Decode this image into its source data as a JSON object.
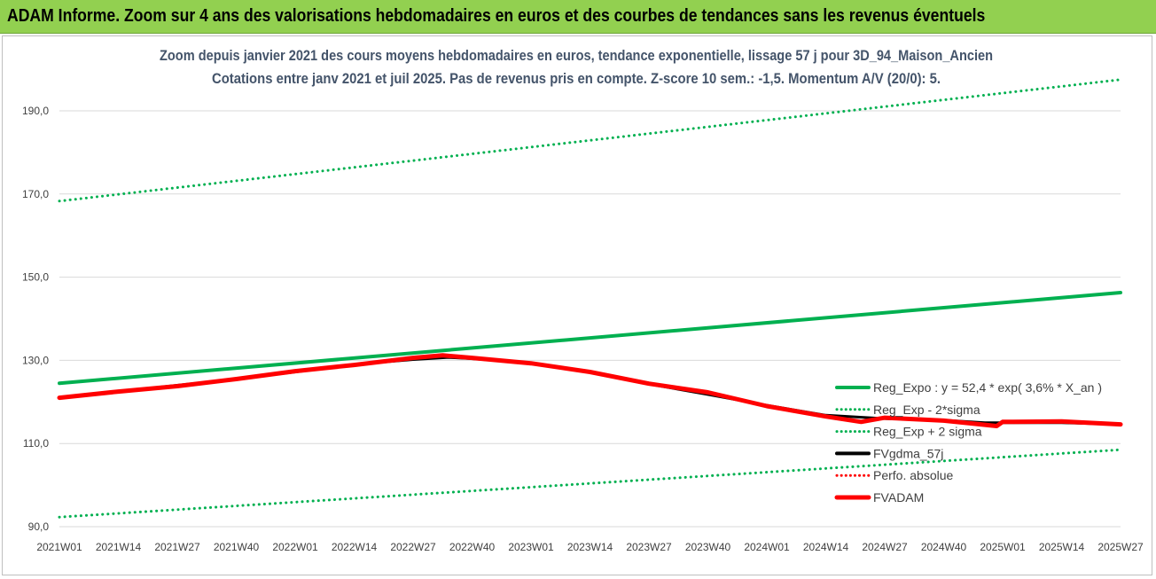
{
  "banner": {
    "text": "ADAM Informe. Zoom sur 4 ans des valorisations hebdomadaires en euros et des courbes de tendances sans les revenus éventuels",
    "color": "#92d050"
  },
  "chart_data": {
    "type": "line",
    "title": "Zoom depuis janvier 2021 des cours moyens hebdomadaires en euros, tendance exponentielle, lissage 57 j pour 3D_94_Maison_Ancien",
    "subtitle": "Cotations entre janv 2021 et juil 2025. Pas de revenus pris en compte. Z-score 10 sem.: -1,5. Momentum A/V (20/0): 5.",
    "x_tick_labels": [
      "2021W01",
      "2021W14",
      "2021W27",
      "2021W40",
      "2022W01",
      "2022W14",
      "2022W27",
      "2022W40",
      "2023W01",
      "2023W14",
      "2023W27",
      "2023W40",
      "2024W01",
      "2024W14",
      "2024W27",
      "2024W40",
      "2025W01",
      "2025W14",
      "2025W27"
    ],
    "y_tick_labels": [
      "90,0",
      "110,0",
      "130,0",
      "150,0",
      "170,0",
      "190,0"
    ],
    "ylim": [
      90,
      200
    ],
    "grid": "horizontal",
    "legend_position": "right",
    "series": [
      {
        "name": "Reg_Expo : y = 52,4 * exp( 3,6% *  X_an )",
        "style": "solid",
        "color": "#00b050",
        "points": [
          [
            0,
            124.5
          ],
          [
            18,
            146.3
          ]
        ]
      },
      {
        "name": "Reg_Exp - 2*sigma",
        "style": "dotted",
        "color": "#00b050",
        "points": [
          [
            0,
            92.3
          ],
          [
            18,
            108.5
          ]
        ]
      },
      {
        "name": "Reg_Exp + 2 sigma",
        "style": "dotted",
        "color": "#00b050",
        "points": [
          [
            0,
            168.3
          ],
          [
            18,
            197.5
          ]
        ]
      },
      {
        "name": "FVgdma_57j",
        "style": "solid",
        "color": "#000000",
        "points": [
          [
            0,
            121.0
          ],
          [
            1,
            122.5
          ],
          [
            2,
            124.0
          ],
          [
            3,
            125.5
          ],
          [
            4,
            127.2
          ],
          [
            5,
            129.0
          ],
          [
            6,
            130.2
          ],
          [
            6.6,
            130.7
          ],
          [
            7,
            130.4
          ],
          [
            8,
            129.3
          ],
          [
            9,
            127.3
          ],
          [
            10,
            124.3
          ],
          [
            11,
            121.8
          ],
          [
            12,
            119.2
          ],
          [
            13,
            116.8
          ],
          [
            14,
            116.0
          ],
          [
            15,
            115.6
          ],
          [
            15.7,
            115.0
          ],
          [
            16,
            115.0
          ],
          [
            17,
            115.0
          ],
          [
            18,
            114.6
          ]
        ]
      },
      {
        "name": "Perfo. absolue",
        "style": "dotted",
        "color": "#ff0000",
        "points": []
      },
      {
        "name": "FVADAM",
        "style": "solid",
        "color": "#ff0000",
        "points": [
          [
            0,
            121.0
          ],
          [
            1,
            122.5
          ],
          [
            2,
            123.8
          ],
          [
            3,
            125.5
          ],
          [
            4,
            127.4
          ],
          [
            5,
            128.9
          ],
          [
            6,
            130.6
          ],
          [
            6.5,
            131.2
          ],
          [
            7,
            130.6
          ],
          [
            8,
            129.3
          ],
          [
            9,
            127.2
          ],
          [
            10,
            124.4
          ],
          [
            11,
            122.3
          ],
          [
            12,
            119.0
          ],
          [
            13,
            116.5
          ],
          [
            13.6,
            115.2
          ],
          [
            14,
            116.2
          ],
          [
            15,
            115.5
          ],
          [
            15.5,
            114.8
          ],
          [
            15.9,
            114.2
          ],
          [
            16,
            115.2
          ],
          [
            17,
            115.3
          ],
          [
            18,
            114.6
          ]
        ]
      }
    ]
  }
}
